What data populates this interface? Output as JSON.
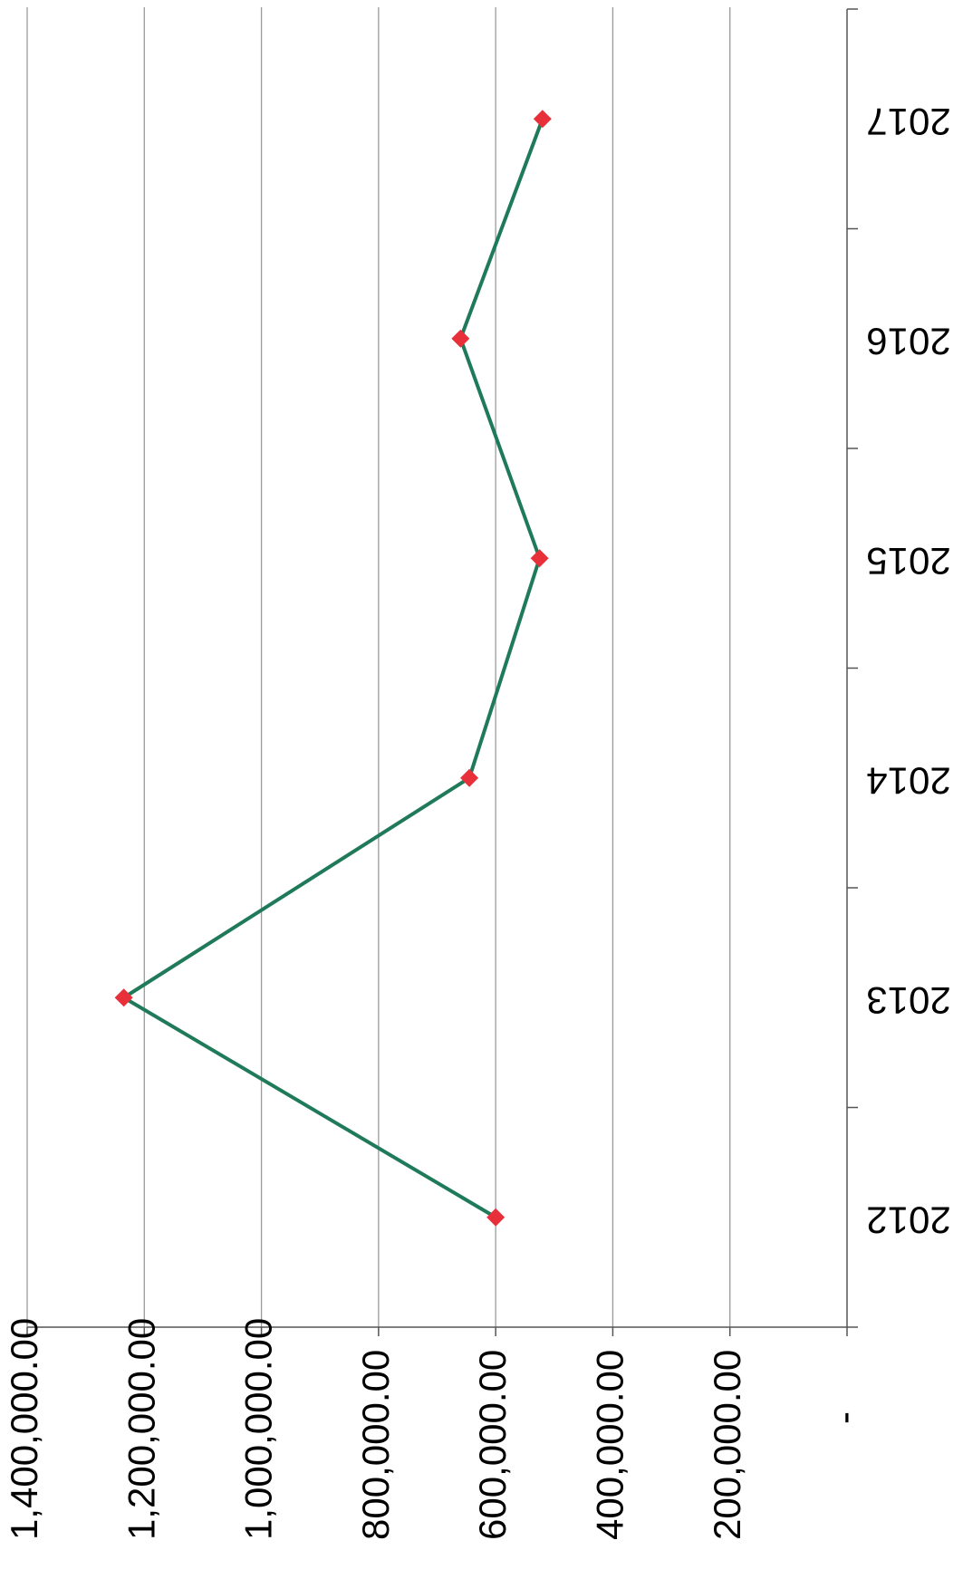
{
  "chart_data": {
    "type": "line",
    "title": "",
    "xlabel": "",
    "ylabel": "",
    "categories": [
      "2012",
      "2013",
      "2014",
      "2015",
      "2016",
      "2017"
    ],
    "series": [
      {
        "values": [
          600000,
          1235000,
          645000,
          525000,
          660000,
          520000
        ],
        "line_color": "#1f7a5a",
        "marker_color": "#e8303a"
      }
    ],
    "ylim": [
      0,
      1400000
    ],
    "y_ticks": [
      200000,
      400000,
      600000,
      800000,
      1000000,
      1200000,
      1400000
    ],
    "y_tick_labels": [
      "200,000.00",
      "400,000.00",
      "600,000.00",
      "800,000.00",
      "1,000,000.00",
      "1,200,000.00",
      "1,400,000.00"
    ],
    "zero_tick_label": "-",
    "grid": true,
    "orientation": "rotated-180",
    "colors": {
      "grid": "#9a9a9a",
      "axis": "#555555"
    }
  }
}
